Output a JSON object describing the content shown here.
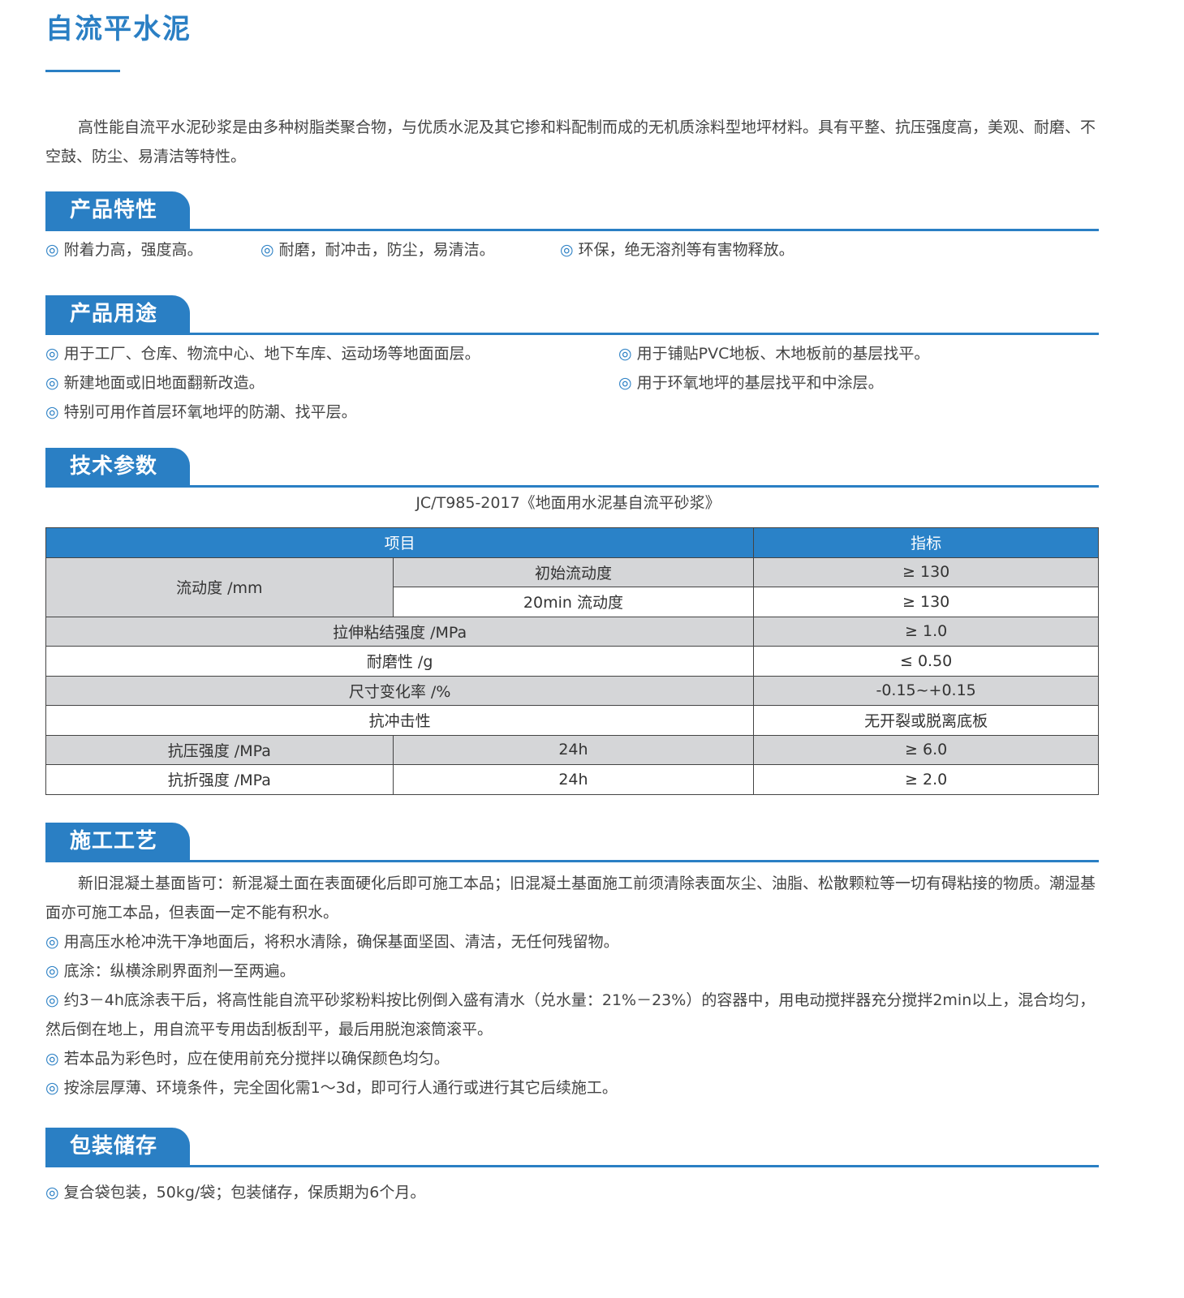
{
  "title": "自流平水泥",
  "intro": "高性能自流平水泥砂浆是由多种树脂类聚合物，与优质水泥及其它掺和料配制而成的无机质涂料型地坪材料。具有平整、抗压强度高，美观、耐磨、不空鼓、防尘、易清洁等特性。",
  "bullet_mark": "◎",
  "features": {
    "heading": "产品特性",
    "items": [
      "附着力高，强度高。",
      "耐磨，耐冲击，防尘，易清洁。",
      "环保，绝无溶剂等有害物释放。"
    ]
  },
  "uses": {
    "heading": "产品用途",
    "items": [
      "用于工厂、仓库、物流中心、地下车库、运动场等地面面层。",
      "用于铺贴PVC地板、木地板前的基层找平。",
      "新建地面或旧地面翻新改造。",
      "用于环氧地坪的基层找平和中涂层。",
      "特别可用作首层环氧地坪的防潮、找平层。"
    ]
  },
  "tech": {
    "heading": "技术参数",
    "standard": "JC/T985-2017《地面用水泥基自流平砂浆》",
    "headers": [
      "项目",
      "指标"
    ],
    "rows": [
      [
        "流动度 /mm",
        "初始流动度",
        "≥ 130"
      ],
      [
        "",
        "20min 流动度",
        "≥ 130"
      ],
      [
        "拉伸粘结强度 /MPa",
        "",
        "≥ 1.0"
      ],
      [
        "耐磨性 /g",
        "",
        "≤ 0.50"
      ],
      [
        "尺寸变化率 /%",
        "",
        "-0.15~+0.15"
      ],
      [
        "抗冲击性",
        "",
        "无开裂或脱离底板"
      ],
      [
        "抗压强度 /MPa",
        "24h",
        "≥ 6.0"
      ],
      [
        "抗折强度 /MPa",
        "24h",
        "≥ 2.0"
      ]
    ]
  },
  "process": {
    "heading": "施工工艺",
    "intro": "新旧混凝土基面皆可：新混凝土面在表面硬化后即可施工本品；旧混凝土基面施工前须清除表面灰尘、油脂、松散颗粒等一切有碍粘接的物质。潮湿基面亦可施工本品，但表面一定不能有积水。",
    "items": [
      "用高压水枪冲洗干净地面后，将积水清除，确保基面坚固、清洁，无任何残留物。",
      "底涂：纵横涂刷界面剂一至两遍。",
      "约3－4h底涂表干后，将高性能自流平砂浆粉料按比例倒入盛有清水（兑水量：21%－23%）的容器中，用电动搅拌器充分搅拌2min以上，混合均匀，然后倒在地上，用自流平专用齿刮板刮平，最后用脱泡滚筒滚平。",
      "若本品为彩色时，应在使用前充分搅拌以确保颜色均匀。",
      "按涂层厚薄、环境条件，完全固化需1～3d，即可行人通行或进行其它后续施工。"
    ]
  },
  "storage": {
    "heading": "包装储存",
    "items": [
      "复合袋包装，50kg/袋；包装储存，保质期为6个月。"
    ]
  },
  "colors": {
    "accent": "#2a7fc4",
    "table_gray": "#d5d6d8"
  }
}
